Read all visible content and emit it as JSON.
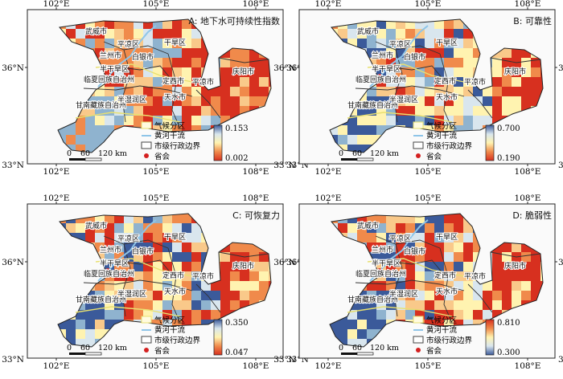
{
  "panels": [
    {
      "id": "A",
      "title": "A: 地下水可持续性指数",
      "colorbar": {
        "max": "0.153",
        "min": "0.002",
        "top_color": "#3b5a9a",
        "bottom_color": "#d7301f"
      }
    },
    {
      "id": "B",
      "title": "B: 可靠性",
      "colorbar": {
        "max": "0.700",
        "min": "0.190",
        "top_color": "#3b5a9a",
        "bottom_color": "#d7301f"
      }
    },
    {
      "id": "C",
      "title": "C: 可恢复力",
      "colorbar": {
        "max": "0.350",
        "min": "0.047",
        "top_color": "#3b5a9a",
        "bottom_color": "#d7301f"
      }
    },
    {
      "id": "D",
      "title": "D: 脆弱性",
      "colorbar": {
        "max": "0.810",
        "min": "0.300",
        "top_color": "#d7301f",
        "bottom_color": "#3b5a9a"
      }
    }
  ],
  "axis_ticks": {
    "longitude": [
      "102°E",
      "105°E",
      "108°E"
    ],
    "latitude": [
      "36°N",
      "33°N"
    ]
  },
  "legend": {
    "climate_zone": "气候分区",
    "yellow_river": "黄河干流",
    "city_boundary": "市级行政边界",
    "capital": "省会"
  },
  "scale_bar": {
    "labels": [
      "0",
      "60",
      "120 km"
    ]
  },
  "city_labels": [
    "武威市",
    "兰州市",
    "白银市",
    "平凉区",
    "庆阳市",
    "平凉市",
    "临夏回族自治州",
    "定西市",
    "甘南藏族自治州",
    "半湿润区",
    "天水市",
    "干旱区",
    "半干旱区"
  ],
  "colors": {
    "red": "#d7301f",
    "orange": "#f08a4b",
    "light_orange": "#f9c98a",
    "pale_yellow": "#fff3b0",
    "pale_blue": "#d9e6ee",
    "mid_blue": "#8fb3cf",
    "dark_blue": "#3b5a9a",
    "yellow_river": "#8ec5e8",
    "zone_outline": "#e8e070",
    "capital_dot": "#d42020"
  }
}
